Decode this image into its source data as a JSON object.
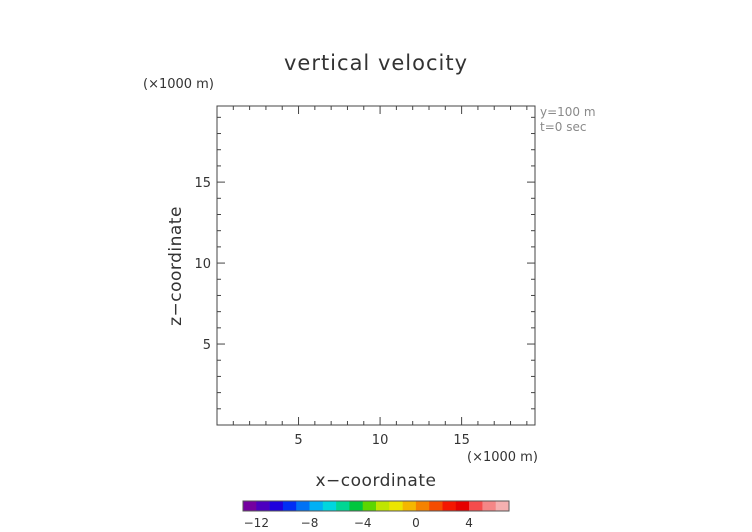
{
  "chart_data": {
    "type": "heatmap",
    "title": "vertical velocity",
    "xlabel": "x−coordinate",
    "ylabel": "z−coordinate",
    "x_unit": "(×1000 m)",
    "y_unit": "(×1000 m)",
    "xlim": [
      0,
      19.5
    ],
    "ylim": [
      0,
      19.7
    ],
    "x_ticks": [
      5,
      10,
      15
    ],
    "y_ticks": [
      5,
      10,
      15
    ],
    "x_tick_labels": [
      "5",
      "10",
      "15"
    ],
    "y_tick_labels": [
      "5",
      "10",
      "15"
    ],
    "minor_tick_step": 1,
    "annotations": [
      "y=100 m",
      "t=0 sec"
    ],
    "values": [],
    "colorbar": {
      "range": [
        -13,
        7
      ],
      "ticks": [
        -12,
        -8,
        -4,
        0,
        4
      ],
      "tick_labels": [
        "−12",
        "−8",
        "−4",
        "0",
        "4"
      ],
      "colors": [
        "#7a00a8",
        "#5000c8",
        "#2000e8",
        "#0030ff",
        "#0078ff",
        "#00b8ff",
        "#00e0e8",
        "#00e09a",
        "#00d040",
        "#60e000",
        "#c8f000",
        "#f8f000",
        "#ffc000",
        "#ff8800",
        "#ff5000",
        "#ff1800",
        "#f00000",
        "#ff5050",
        "#ff8c8c",
        "#ffb8b8"
      ]
    }
  }
}
